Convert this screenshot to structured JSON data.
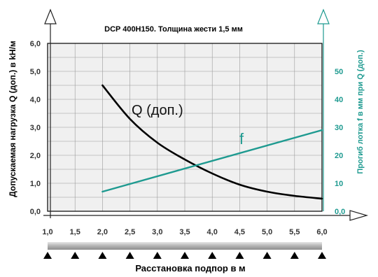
{
  "chart_data": {
    "type": "line",
    "title": "DCP 400H150. Толщина жести 1,5 мм",
    "xlabel": "Расстановка подпор в м",
    "ylabel": "Допускаемая нагрузка Q (доп.) в kH/м",
    "y2label": "Прогиб лотка f  в мм при Q (доп.)",
    "xlim": [
      1.0,
      6.0
    ],
    "ylim": [
      0.0,
      6.0
    ],
    "y2lim": [
      0,
      60
    ],
    "x_ticks": [
      "1,0",
      "1,5",
      "2,0",
      "2,5",
      "3,0",
      "3,5",
      "4,0",
      "4,5",
      "5,0",
      "5,5",
      "6,0"
    ],
    "y_ticks": [
      "0,0",
      "1,0",
      "2,0",
      "3,0",
      "4,0",
      "5,0",
      "6,0"
    ],
    "y2_ticks": [
      "0,0",
      "10",
      "20",
      "30",
      "40",
      "50"
    ],
    "grid": true,
    "series": [
      {
        "name": "Q (доп.)",
        "axis": "left",
        "color": "#000000",
        "x": [
          2.0,
          2.5,
          3.0,
          3.5,
          4.0,
          4.5,
          5.0,
          5.5,
          6.0
        ],
        "y": [
          4.5,
          3.3,
          2.45,
          1.85,
          1.35,
          0.95,
          0.7,
          0.55,
          0.45
        ]
      },
      {
        "name": "f",
        "axis": "right",
        "color": "#1e9a90",
        "x": [
          2.0,
          6.0
        ],
        "y": [
          7,
          29
        ]
      }
    ]
  }
}
